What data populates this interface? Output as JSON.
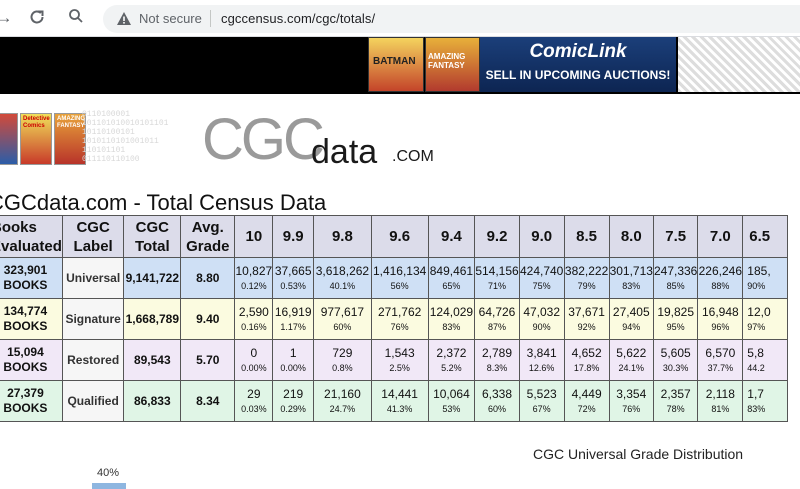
{
  "browser": {
    "security_label": "Not secure",
    "url": "cgccensus.com/cgc/totals/"
  },
  "ad": {
    "brand": "ComicLink",
    "cta": "SELL IN UPCOMING AUCTIONS!",
    "covers": [
      "BATMAN",
      "AMAZING FANTASY"
    ]
  },
  "logo": {
    "covers": [
      "",
      "Detective Comics",
      "AMAZING FANTASY"
    ],
    "cgc": "CGC",
    "data": "data",
    "com": ".COM",
    "binary": "0110100001\n101101010010101101\n10110100101\n1010110101001011\n110101101\n011110110100"
  },
  "page_title": "CGCdata.com - Total Census Data",
  "table": {
    "headers": {
      "books": "Books\nEvaluated",
      "label": "CGC\nLabel",
      "total": "CGC\nTotal",
      "avg": "Avg.\nGrade",
      "grades": [
        "10",
        "9.9",
        "9.8",
        "9.6",
        "9.4",
        "9.2",
        "9.0",
        "8.5",
        "8.0",
        "7.5",
        "7.0",
        "6.5"
      ]
    },
    "rows": [
      {
        "books": "323,901\nBOOKS",
        "label": "Universal",
        "total": "9,141,722",
        "avg": "8.80",
        "cells": [
          [
            "10,827",
            "0.12%"
          ],
          [
            "37,665",
            "0.53%"
          ],
          [
            "3,618,262",
            "40.1%"
          ],
          [
            "1,416,134",
            "56%"
          ],
          [
            "849,461",
            "65%"
          ],
          [
            "514,156",
            "71%"
          ],
          [
            "424,740",
            "75%"
          ],
          [
            "382,222",
            "79%"
          ],
          [
            "301,713",
            "83%"
          ],
          [
            "247,336",
            "85%"
          ],
          [
            "226,246",
            "88%"
          ],
          [
            "185,",
            "90%"
          ]
        ]
      },
      {
        "books": "134,774\nBOOKS",
        "label": "Signature",
        "total": "1,668,789",
        "avg": "9.40",
        "cells": [
          [
            "2,590",
            "0.16%"
          ],
          [
            "16,919",
            "1.17%"
          ],
          [
            "977,617",
            "60%"
          ],
          [
            "271,762",
            "76%"
          ],
          [
            "124,029",
            "83%"
          ],
          [
            "64,726",
            "87%"
          ],
          [
            "47,032",
            "90%"
          ],
          [
            "37,671",
            "92%"
          ],
          [
            "27,405",
            "94%"
          ],
          [
            "19,825",
            "95%"
          ],
          [
            "16,948",
            "96%"
          ],
          [
            "12,0",
            "97%"
          ]
        ]
      },
      {
        "books": "15,094\nBOOKS",
        "label": "Restored",
        "total": "89,543",
        "avg": "5.70",
        "cells": [
          [
            "0",
            "0.00%"
          ],
          [
            "1",
            "0.00%"
          ],
          [
            "729",
            "0.8%"
          ],
          [
            "1,543",
            "2.5%"
          ],
          [
            "2,372",
            "5.2%"
          ],
          [
            "2,789",
            "8.3%"
          ],
          [
            "3,841",
            "12.6%"
          ],
          [
            "4,652",
            "17.8%"
          ],
          [
            "5,622",
            "24.1%"
          ],
          [
            "5,605",
            "30.3%"
          ],
          [
            "6,570",
            "37.7%"
          ],
          [
            "5,8",
            "44.2"
          ]
        ]
      },
      {
        "books": "27,379\nBOOKS",
        "label": "Qualified",
        "total": "86,833",
        "avg": "8.34",
        "cells": [
          [
            "29",
            "0.03%"
          ],
          [
            "219",
            "0.29%"
          ],
          [
            "21,160",
            "24.7%"
          ],
          [
            "14,441",
            "41.3%"
          ],
          [
            "10,064",
            "53%"
          ],
          [
            "6,338",
            "60%"
          ],
          [
            "5,523",
            "67%"
          ],
          [
            "4,449",
            "72%"
          ],
          [
            "3,354",
            "76%"
          ],
          [
            "2,357",
            "78%"
          ],
          [
            "2,118",
            "81%"
          ],
          [
            "1,7",
            "83%"
          ]
        ]
      }
    ]
  },
  "chart": {
    "title": "CGC Universal Grade Distribution",
    "first_bar_label": "40%",
    "first_bar_value": 40
  }
}
